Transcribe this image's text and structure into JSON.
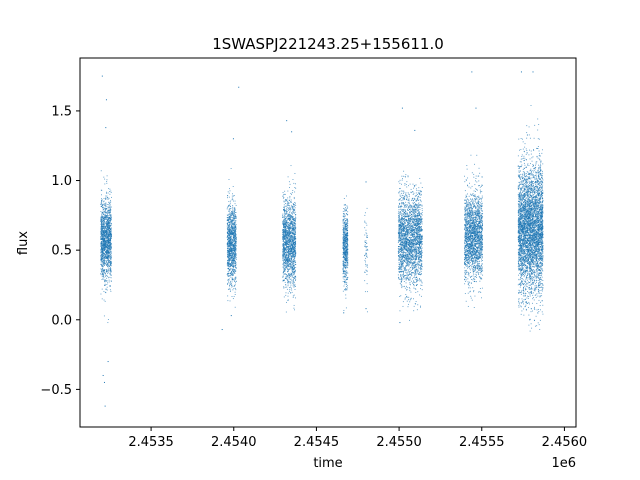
{
  "chart_data": {
    "type": "scatter",
    "title": "1SWASPJ221243.25+155611.0",
    "xlabel": "time",
    "ylabel": "flux",
    "x_offset_label": "1e6",
    "xlim": [
      2453070,
      2456070
    ],
    "ylim": [
      -0.77,
      1.88
    ],
    "x_ticks": [
      2.4535,
      2.454,
      2.4545,
      2.455,
      2.4555,
      2.456
    ],
    "x_tick_labels": [
      "2.4535",
      "2.4540",
      "2.4545",
      "2.4550",
      "2.4555",
      "2.4560"
    ],
    "y_ticks": [
      -0.5,
      0.0,
      0.5,
      1.0,
      1.5
    ],
    "y_tick_labels": [
      "−0.5",
      "0.0",
      "0.5",
      "1.0",
      "1.5"
    ],
    "grid": false,
    "legend": "none",
    "marker_color": "#1f77b4",
    "series": [
      {
        "values": [
          {
            "x_range": [
              2453195,
              2453260
            ],
            "y_mean": 0.58,
            "y_spread": 0.26,
            "points": 1400,
            "outliers": [
              [
                2453205,
                1.75
              ],
              [
                2453230,
                1.58
              ],
              [
                2453222,
                -0.62
              ],
              [
                2453218,
                -0.45
              ],
              [
                2453210,
                -0.4
              ],
              [
                2453240,
                -0.3
              ],
              [
                2453226,
                1.38
              ]
            ]
          },
          {
            "x_range": [
              2453960,
              2454015
            ],
            "y_mean": 0.55,
            "y_spread": 0.26,
            "points": 1100,
            "outliers": [
              [
                2454030,
                1.67
              ],
              [
                2453985,
                0.03
              ],
              [
                2453930,
                -0.07
              ],
              [
                2453998,
                1.3
              ]
            ]
          },
          {
            "x_range": [
              2454295,
              2454375
            ],
            "y_mean": 0.55,
            "y_spread": 0.28,
            "points": 1500,
            "outliers": [
              [
                2454320,
                1.43
              ],
              [
                2454350,
                1.35
              ]
            ]
          },
          {
            "x_range": [
              2454660,
              2454690
            ],
            "y_mean": 0.52,
            "y_spread": 0.24,
            "points": 600,
            "outliers": [
              [
                2454665,
                0.05
              ]
            ]
          },
          {
            "x_range": [
              2454790,
              2454810
            ],
            "y_mean": 0.52,
            "y_spread": 0.26,
            "points": 60,
            "outliers": [
              [
                2454800,
                0.99
              ],
              [
                2454800,
                0.08
              ]
            ]
          },
          {
            "x_range": [
              2454995,
              2455140
            ],
            "y_mean": 0.58,
            "y_spread": 0.3,
            "points": 2300,
            "outliers": [
              [
                2455020,
                1.52
              ],
              [
                2455005,
                -0.02
              ],
              [
                2455095,
                1.36
              ]
            ]
          },
          {
            "x_range": [
              2455395,
              2455505
            ],
            "y_mean": 0.6,
            "y_spread": 0.28,
            "points": 1900,
            "outliers": [
              [
                2455440,
                1.78
              ],
              [
                2455465,
                1.52
              ]
            ]
          },
          {
            "x_range": [
              2455720,
              2455870
            ],
            "y_mean": 0.65,
            "y_spread": 0.42,
            "points": 4200,
            "outliers": [
              [
                2455740,
                1.78
              ],
              [
                2455810,
                1.78
              ],
              [
                2455790,
                0.0
              ]
            ]
          }
        ]
      }
    ]
  }
}
